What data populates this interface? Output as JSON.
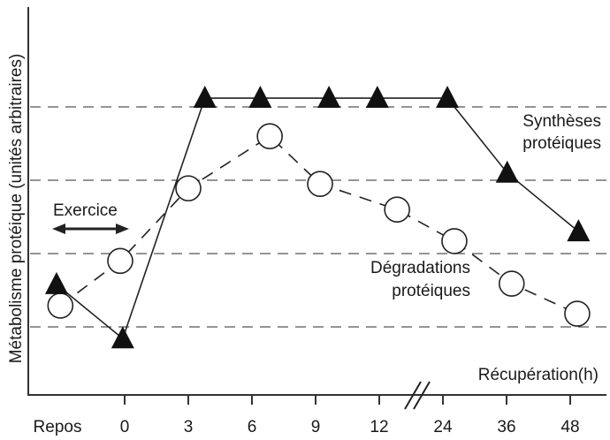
{
  "chart_data": {
    "type": "line",
    "ylabel": "Métabolisme protéique (unités arbitraires)",
    "xlabel": "Récupération(h)",
    "categories": [
      "Repos",
      "0",
      "3",
      "6",
      "9",
      "12",
      "24",
      "36",
      "48"
    ],
    "category_positions": [
      -1,
      0,
      1,
      2,
      3,
      4,
      5,
      6,
      7
    ],
    "axis_break_between": [
      "12",
      "24"
    ],
    "ylim": [
      0.07,
      5.2
    ],
    "gridlines_y": [
      1,
      2,
      3,
      4
    ],
    "grid": "horizontal dashed",
    "annotations": {
      "exercise_label": "Exercice",
      "synthesis_label": [
        "Synthèses",
        "protéiques"
      ],
      "degradation_label": [
        "Dégradations",
        "protéiques"
      ]
    },
    "series": [
      {
        "name": "Synthèses protéiques",
        "marker": "filled-triangle",
        "line": "solid",
        "x": [
          -1.07,
          -0.03,
          1.26,
          2.13,
          3.21,
          3.97,
          5.07,
          6.01,
          7.13
        ],
        "values": [
          1.58,
          0.84,
          4.12,
          4.12,
          4.12,
          4.12,
          4.12,
          3.1,
          2.3
        ]
      },
      {
        "name": "Dégradations protéiques",
        "marker": "open-circle",
        "line": "dashed",
        "x": [
          -1.01,
          -0.07,
          1.0,
          2.28,
          3.07,
          4.28,
          5.18,
          6.08,
          7.11
        ],
        "values": [
          1.29,
          1.9,
          2.89,
          3.6,
          2.95,
          2.6,
          2.17,
          1.59,
          1.18
        ]
      }
    ]
  }
}
